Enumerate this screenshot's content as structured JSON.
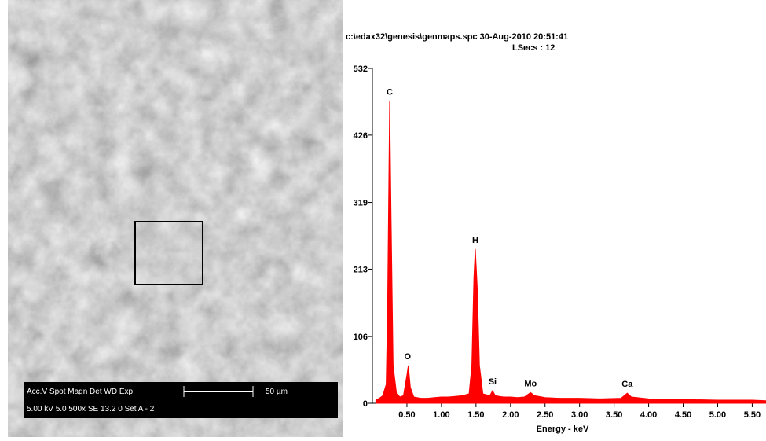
{
  "sem_image": {
    "info_header": "Acc.V  Spot Magn    Det  WD  Exp",
    "info_values": "5.00 kV 5.0   500x    SE   13.2  0      Set A - 2",
    "scale_label": "50 µm"
  },
  "chart_data": {
    "type": "area",
    "title": "c:\\edax32\\genesis\\genmaps.spc  30-Aug-2010 20:51:41",
    "subtitle": "LSecs : 12",
    "x_label": "Energy - keV",
    "color": "#ff0000",
    "x": [
      0.05,
      0.1,
      0.15,
      0.2,
      0.22,
      0.25,
      0.27,
      0.3,
      0.35,
      0.4,
      0.45,
      0.5,
      0.52,
      0.55,
      0.6,
      0.7,
      0.8,
      0.9,
      1.0,
      1.1,
      1.2,
      1.3,
      1.4,
      1.44,
      1.47,
      1.49,
      1.52,
      1.55,
      1.6,
      1.7,
      1.74,
      1.78,
      1.9,
      2.0,
      2.1,
      2.2,
      2.29,
      2.35,
      2.5,
      2.7,
      3.0,
      3.3,
      3.6,
      3.69,
      3.75,
      4.0,
      4.5,
      5.0,
      5.5,
      5.7
    ],
    "values": [
      5,
      8,
      12,
      30,
      150,
      480,
      300,
      60,
      15,
      10,
      12,
      45,
      60,
      25,
      10,
      8,
      8,
      9,
      10,
      10,
      11,
      12,
      15,
      60,
      200,
      245,
      180,
      60,
      15,
      12,
      20,
      12,
      10,
      10,
      9,
      10,
      17,
      12,
      9,
      8,
      8,
      7,
      8,
      16,
      10,
      7,
      6,
      5,
      5,
      4
    ],
    "peak_labels": [
      {
        "label": "C",
        "x": 0.25
      },
      {
        "label": "O",
        "x": 0.51
      },
      {
        "label": "H",
        "x": 1.49
      },
      {
        "label": "Si",
        "x": 1.74
      },
      {
        "label": "Mo",
        "x": 2.29
      },
      {
        "label": "Ca",
        "x": 3.69
      }
    ],
    "xlim": [
      0,
      5.7
    ],
    "xticks": [
      {
        "value": 0.5,
        "label": "0.50"
      },
      {
        "value": 1,
        "label": "1.00"
      },
      {
        "value": 1.5,
        "label": "1.50"
      },
      {
        "value": 2,
        "label": "2.00"
      },
      {
        "value": 2.5,
        "label": "2.50"
      },
      {
        "value": 3,
        "label": "3.00"
      },
      {
        "value": 3.5,
        "label": "3.50"
      },
      {
        "value": 4,
        "label": "4.00"
      },
      {
        "value": 4.5,
        "label": "4.50"
      },
      {
        "value": 5,
        "label": "5.00"
      },
      {
        "value": 5.5,
        "label": "5.50"
      }
    ],
    "ylim": [
      0,
      532
    ],
    "yticks": [
      0,
      106,
      213,
      319,
      426,
      532
    ]
  }
}
